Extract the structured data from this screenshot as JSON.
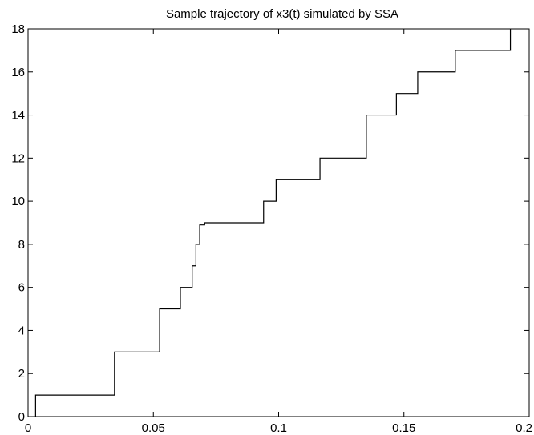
{
  "chart_data": {
    "type": "line",
    "step": true,
    "title": "Sample trajectory of x3(t) simulated by SSA",
    "xlabel": "",
    "ylabel": "",
    "xlim": [
      0,
      0.2
    ],
    "ylim": [
      0,
      18
    ],
    "xticks": [
      0,
      0.05,
      0.1,
      0.15,
      0.2
    ],
    "xtick_labels": [
      "0",
      "0.05",
      "0.1",
      "0.15",
      "0.2"
    ],
    "yticks": [
      0,
      2,
      4,
      6,
      8,
      10,
      12,
      14,
      16,
      18
    ],
    "ytick_labels": [
      "0",
      "2",
      "4",
      "6",
      "8",
      "10",
      "12",
      "14",
      "16",
      "18"
    ],
    "grid": false,
    "series": [
      {
        "x": [
          0.003,
          0.003,
          0.0345,
          0.0345,
          0.0525,
          0.0525,
          0.0608,
          0.0608,
          0.0655,
          0.0655,
          0.067,
          0.067,
          0.0685,
          0.0685,
          0.0705,
          0.0705,
          0.094,
          0.094,
          0.099,
          0.099,
          0.1165,
          0.1165,
          0.135,
          0.135,
          0.147,
          0.147,
          0.1555,
          0.1555,
          0.1705,
          0.1705,
          0.1925,
          0.1925
        ],
        "y": [
          0,
          1,
          1,
          3,
          3,
          5,
          5,
          6,
          6,
          7,
          7,
          8,
          8,
          8.9,
          8.9,
          9,
          9,
          10,
          10,
          11,
          11,
          12,
          12,
          14,
          14,
          15,
          15,
          16,
          16,
          17,
          17,
          18
        ]
      }
    ]
  }
}
